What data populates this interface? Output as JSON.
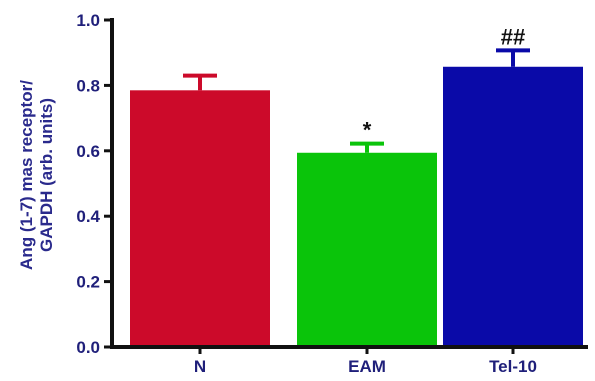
{
  "chart_data": {
    "type": "bar",
    "title": "",
    "xlabel": "",
    "ylabel": [
      "Ang (1-7) mas receptor/",
      "GAPDH (arb. units)"
    ],
    "ylim": [
      0,
      1.0
    ],
    "yticks": [
      "0.0",
      "0.2",
      "0.4",
      "0.6",
      "0.8",
      "1.0"
    ],
    "categories": [
      "N",
      "EAM",
      "Tel-10"
    ],
    "values": [
      0.785,
      0.594,
      0.857
    ],
    "errors": [
      0.045,
      0.028,
      0.05
    ],
    "bar_colors": [
      "#cc0a2a",
      "#0ac40a",
      "#0a0aa8"
    ],
    "annotations": [
      "",
      "*",
      "##"
    ],
    "grid": false,
    "legend": "none"
  }
}
